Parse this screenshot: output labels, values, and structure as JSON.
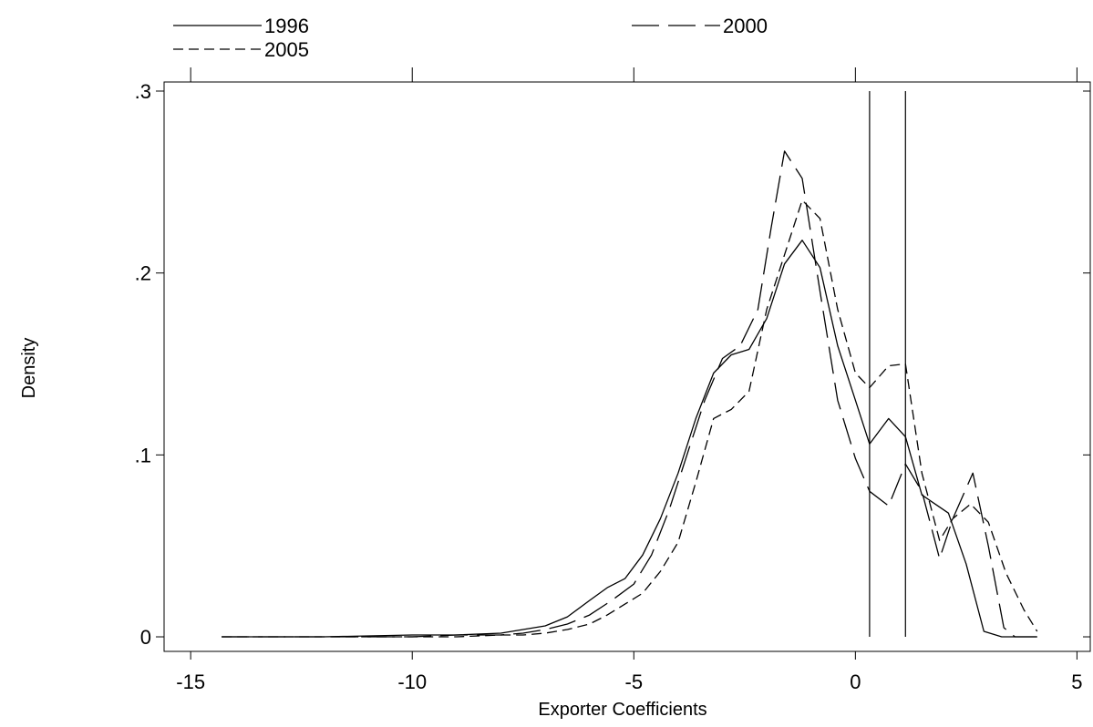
{
  "chart_data": {
    "type": "line",
    "title": "",
    "xlabel": "Exporter Coefficients",
    "ylabel": "Density",
    "xlim": [
      -15.6,
      5.3
    ],
    "ylim": [
      -0.008,
      0.305
    ],
    "x_ticks": [
      {
        "value": -15,
        "label": "-15"
      },
      {
        "value": -10,
        "label": "-10"
      },
      {
        "value": -5,
        "label": "-5"
      },
      {
        "value": 0,
        "label": "0"
      },
      {
        "value": 5,
        "label": "5"
      }
    ],
    "y_ticks": [
      {
        "value": 0,
        "label": "0"
      },
      {
        "value": 0.1,
        "label": ".1"
      },
      {
        "value": 0.2,
        "label": ".2"
      },
      {
        "value": 0.3,
        "label": ".3"
      }
    ],
    "grid": false,
    "legend_position": "top",
    "vertical_lines": [
      0.32,
      1.13
    ],
    "vertical_line_ymax": 0.3,
    "series": [
      {
        "name": "1996",
        "dash": "solid",
        "points": [
          [
            -14.3,
            0
          ],
          [
            -12,
            0
          ],
          [
            -10,
            0.001
          ],
          [
            -9,
            0.001
          ],
          [
            -8,
            0.002
          ],
          [
            -7.5,
            0.004
          ],
          [
            -7,
            0.006
          ],
          [
            -6.5,
            0.011
          ],
          [
            -6,
            0.02
          ],
          [
            -5.6,
            0.027
          ],
          [
            -5.2,
            0.032
          ],
          [
            -4.8,
            0.045
          ],
          [
            -4.4,
            0.065
          ],
          [
            -4,
            0.09
          ],
          [
            -3.6,
            0.12
          ],
          [
            -3.2,
            0.145
          ],
          [
            -2.8,
            0.155
          ],
          [
            -2.4,
            0.158
          ],
          [
            -2,
            0.175
          ],
          [
            -1.6,
            0.205
          ],
          [
            -1.2,
            0.218
          ],
          [
            -0.8,
            0.203
          ],
          [
            -0.4,
            0.16
          ],
          [
            0,
            0.13
          ],
          [
            0.32,
            0.106
          ],
          [
            0.75,
            0.12
          ],
          [
            1.13,
            0.11
          ],
          [
            1.5,
            0.078
          ],
          [
            1.8,
            0.073
          ],
          [
            2.1,
            0.068
          ],
          [
            2.5,
            0.04
          ],
          [
            2.9,
            0.003
          ],
          [
            3.3,
            0
          ],
          [
            4.1,
            0
          ]
        ]
      },
      {
        "name": "2000",
        "dash": "longdash",
        "points": [
          [
            -14.3,
            0
          ],
          [
            -12,
            0
          ],
          [
            -10,
            0
          ],
          [
            -9,
            0.001
          ],
          [
            -8,
            0.001
          ],
          [
            -7.5,
            0.002
          ],
          [
            -7,
            0.004
          ],
          [
            -6.5,
            0.007
          ],
          [
            -6,
            0.012
          ],
          [
            -5.5,
            0.02
          ],
          [
            -5,
            0.029
          ],
          [
            -4.6,
            0.045
          ],
          [
            -4.2,
            0.07
          ],
          [
            -3.8,
            0.1
          ],
          [
            -3.4,
            0.13
          ],
          [
            -3,
            0.153
          ],
          [
            -2.6,
            0.16
          ],
          [
            -2.2,
            0.18
          ],
          [
            -1.9,
            0.225
          ],
          [
            -1.6,
            0.267
          ],
          [
            -1.2,
            0.252
          ],
          [
            -0.8,
            0.19
          ],
          [
            -0.4,
            0.13
          ],
          [
            0,
            0.098
          ],
          [
            0.32,
            0.08
          ],
          [
            0.75,
            0.072
          ],
          [
            1.13,
            0.095
          ],
          [
            1.5,
            0.08
          ],
          [
            1.9,
            0.043
          ],
          [
            2.2,
            0.065
          ],
          [
            2.65,
            0.09
          ],
          [
            3,
            0.05
          ],
          [
            3.35,
            0.005
          ],
          [
            3.6,
            0
          ],
          [
            4.1,
            0
          ]
        ]
      },
      {
        "name": "2005",
        "dash": "shortdash",
        "points": [
          [
            -14.3,
            0
          ],
          [
            -12,
            0
          ],
          [
            -10,
            0
          ],
          [
            -9,
            0
          ],
          [
            -8,
            0.001
          ],
          [
            -7.5,
            0.001
          ],
          [
            -7,
            0.002
          ],
          [
            -6.5,
            0.004
          ],
          [
            -6,
            0.007
          ],
          [
            -5.6,
            0.012
          ],
          [
            -5.2,
            0.018
          ],
          [
            -4.8,
            0.024
          ],
          [
            -4.4,
            0.036
          ],
          [
            -4,
            0.052
          ],
          [
            -3.6,
            0.085
          ],
          [
            -3.2,
            0.12
          ],
          [
            -2.8,
            0.125
          ],
          [
            -2.4,
            0.135
          ],
          [
            -2,
            0.18
          ],
          [
            -1.6,
            0.21
          ],
          [
            -1.2,
            0.24
          ],
          [
            -0.8,
            0.23
          ],
          [
            -0.4,
            0.18
          ],
          [
            0,
            0.145
          ],
          [
            0.32,
            0.137
          ],
          [
            0.75,
            0.149
          ],
          [
            1.13,
            0.15
          ],
          [
            1.5,
            0.09
          ],
          [
            1.9,
            0.053
          ],
          [
            2.2,
            0.065
          ],
          [
            2.6,
            0.073
          ],
          [
            3,
            0.063
          ],
          [
            3.4,
            0.035
          ],
          [
            3.8,
            0.015
          ],
          [
            4.1,
            0.003
          ]
        ]
      }
    ]
  }
}
